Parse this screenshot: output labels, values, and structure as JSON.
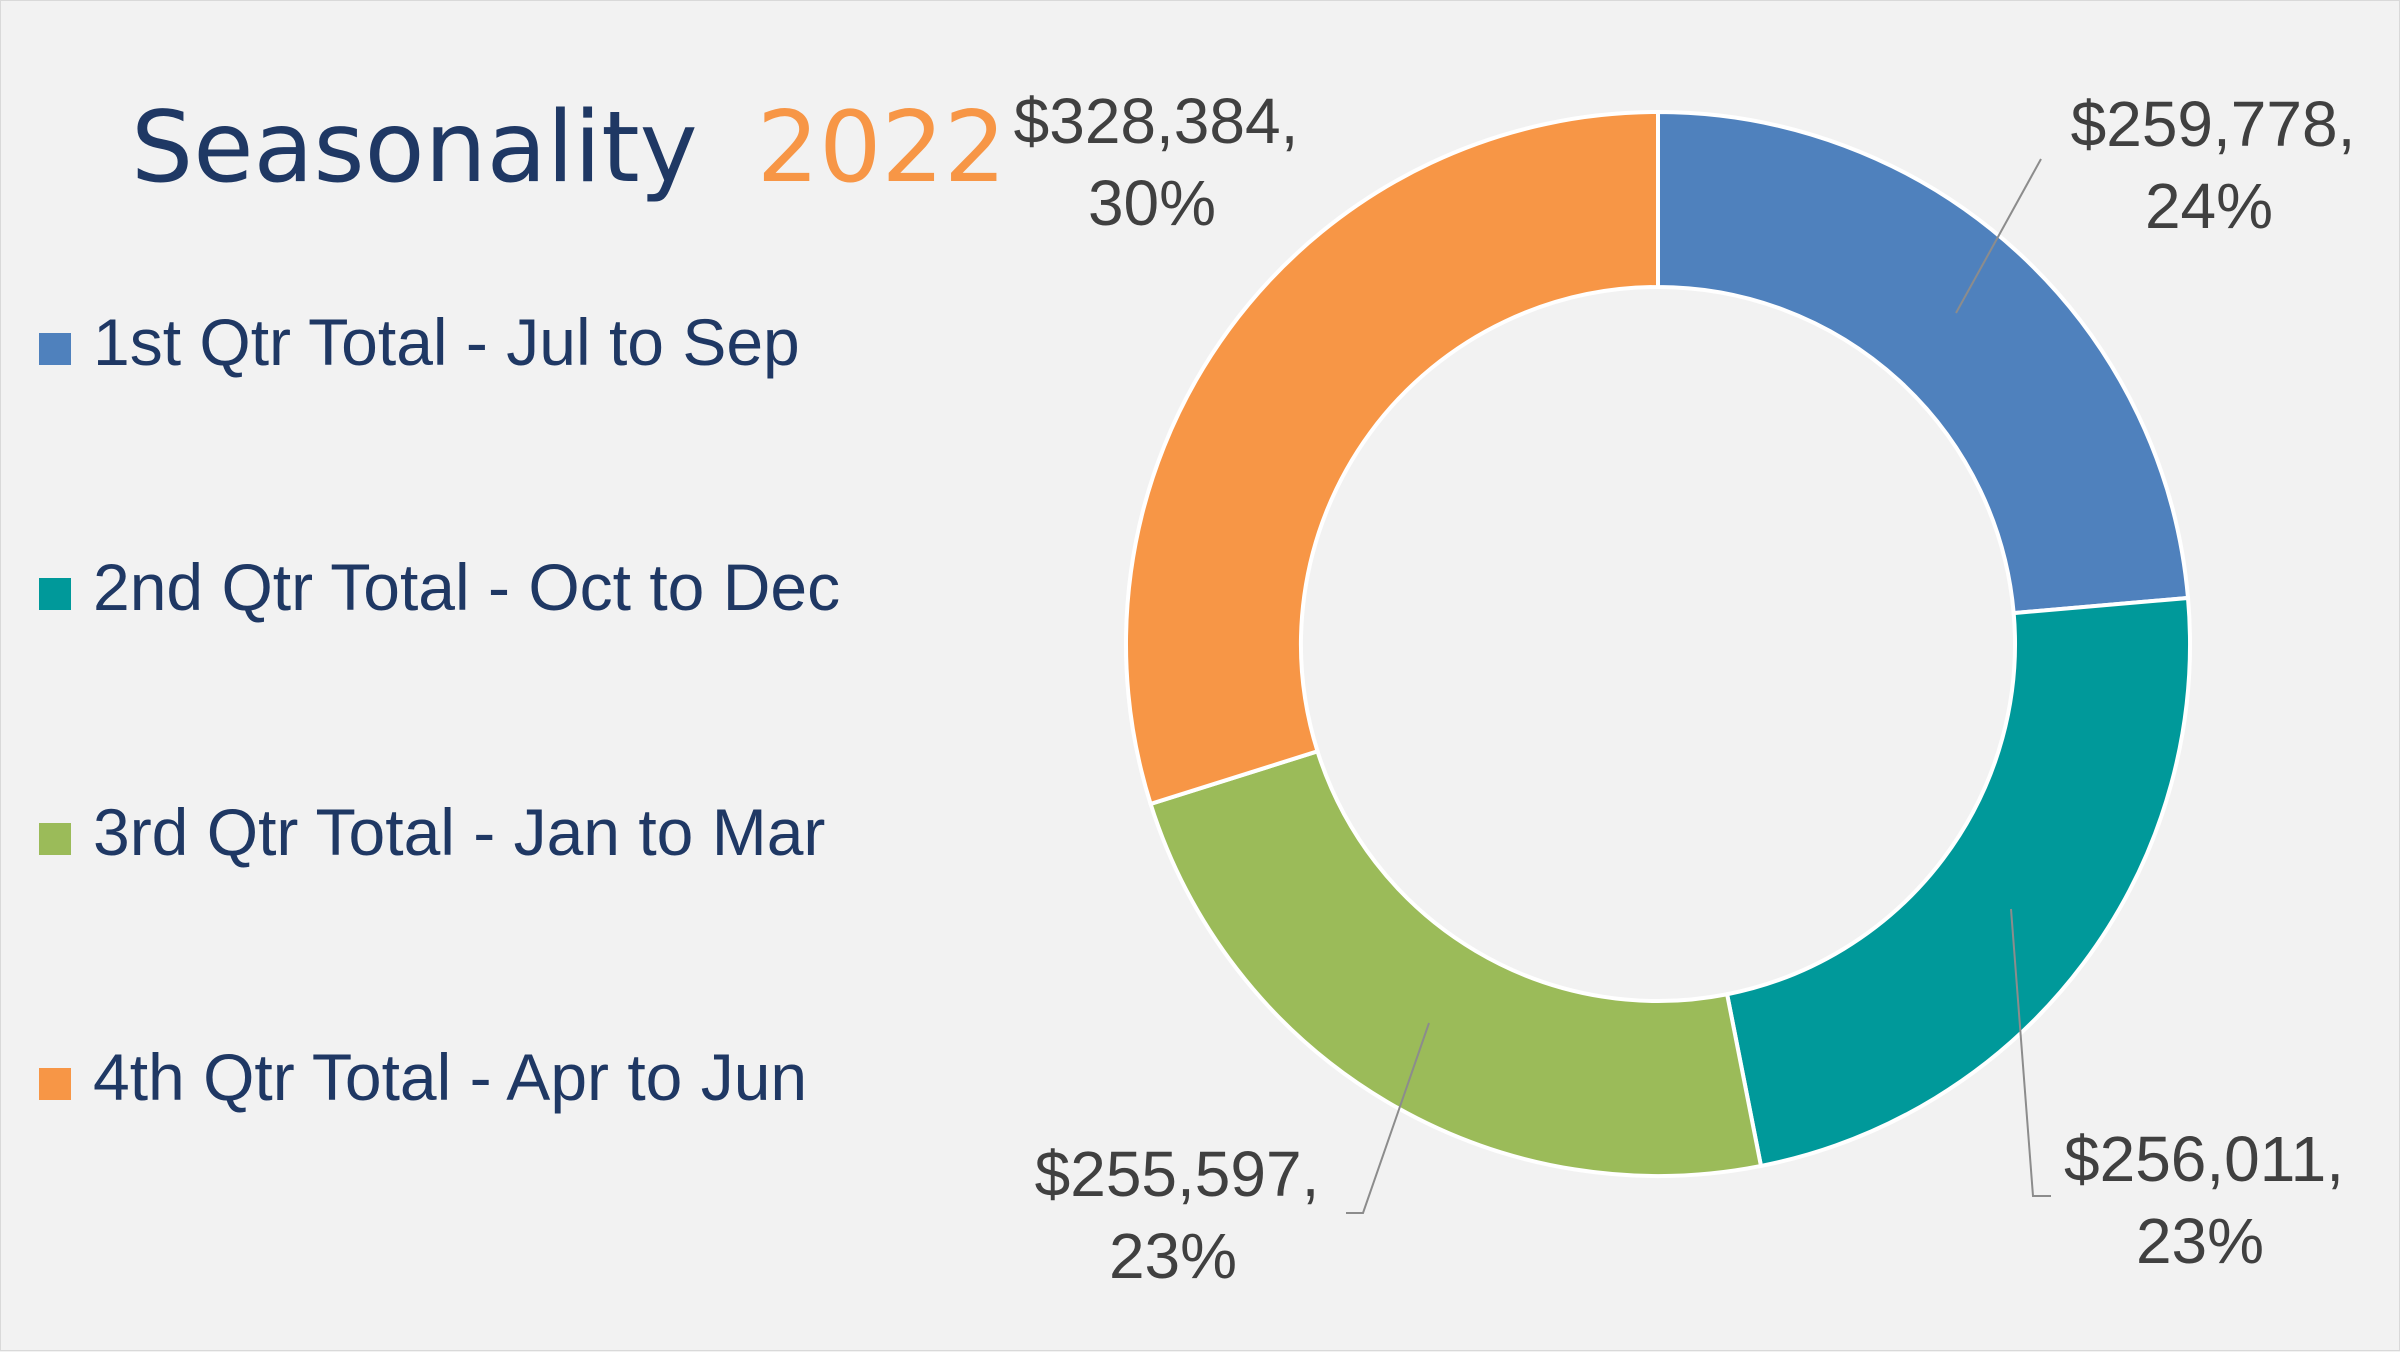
{
  "chart_data": {
    "type": "pie",
    "variant": "donut",
    "title": "Seasonality",
    "title_highlight": "2022",
    "categories": [
      "1st Qtr Total - Jul to Sep",
      "2nd Qtr Total - Oct to Dec",
      "3rd Qtr Total - Jan to Mar",
      "4th Qtr Total - Apr to Jun"
    ],
    "values": [
      259778,
      256011,
      255597,
      328384
    ],
    "value_labels": [
      "$259,778,",
      "$256,011,",
      "$255,597,",
      "$328,384,"
    ],
    "percent_labels": [
      "24%",
      "23%",
      "23%",
      "30%"
    ],
    "colors": [
      "#4f81bd",
      "#00999a",
      "#9bbb59",
      "#f79646"
    ],
    "title_colors": {
      "title": "#1f3864",
      "highlight": "#f79646"
    },
    "legend_text_color": "#1f3864",
    "legend_position": "left"
  }
}
